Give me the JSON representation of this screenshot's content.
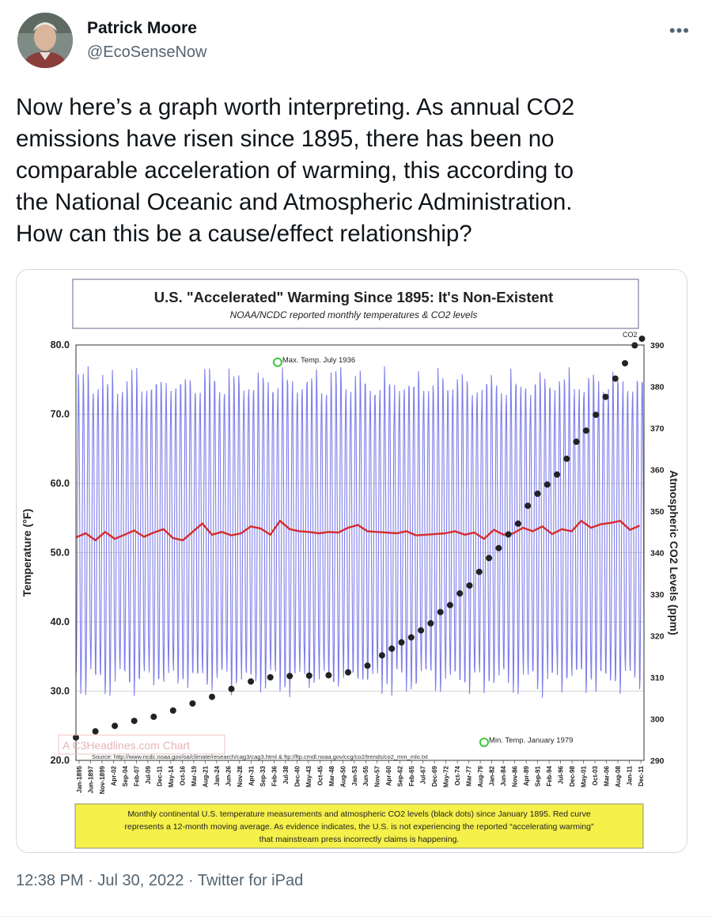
{
  "author": {
    "name": "Patrick Moore",
    "handle": "@EcoSenseNow"
  },
  "menu_icon": "more-horizontal-icon",
  "tweet": {
    "text": "Now here’s a graph worth interpreting. As annual CO2\nemissions have risen since 1895, there has been no\ncomparable acceleration of warming, this according to\nthe National Oceanic and Atmospheric Administration.\nHow can this be a cause/effect relationship?"
  },
  "meta": {
    "time": "12:38 PM",
    "separator": "·",
    "date": "Jul 30, 2022",
    "source": "Twitter for iPad"
  },
  "colors": {
    "monthly_bars": "#6f6fe8",
    "moving_average": "#d62c2c",
    "co2_dots": "#222222",
    "caption_bg": "#f5f04a"
  },
  "chart_data": {
    "type": "line",
    "title": "U.S. \"Accelerated\" Warming Since 1895: It's Non-Existent",
    "subtitle": "NOAA/NCDC reported monthly temperatures & CO2 levels",
    "ylabel": "Temperature (°F)",
    "y2label": "Atmospheric CO2 Levels (ppm)",
    "ylim": [
      20,
      80
    ],
    "y2lim": [
      290,
      390
    ],
    "yticks": [
      "80.0",
      "70.0",
      "60.0",
      "50.0",
      "40.0",
      "30.0",
      "20.0"
    ],
    "y2ticks": [
      "390",
      "380",
      "370",
      "360",
      "350",
      "340",
      "330",
      "320",
      "310",
      "300",
      "290"
    ],
    "x_range": [
      1895,
      2011.9
    ],
    "xtick_labels": [
      "Jan-1895",
      "Jun-1897",
      "Nov-1899",
      "Apr-02",
      "Sep-04",
      "Feb-07",
      "Jul-09",
      "Dec-11",
      "May-14",
      "Oct-16",
      "Mar-19",
      "Aug-21",
      "Jan-24",
      "Jun-26",
      "Nov-28",
      "Apr-31",
      "Sep-33",
      "Feb-36",
      "Jul-38",
      "Dec-40",
      "May-43",
      "Oct-45",
      "Mar-48",
      "Aug-50",
      "Jan-53",
      "Jun-55",
      "Nov-57",
      "Apr-60",
      "Sep-62",
      "Feb-65",
      "Jul-67",
      "Dec-69",
      "May-72",
      "Oct-74",
      "Mar-77",
      "Aug-79",
      "Jan-82",
      "Jun-84",
      "Nov-86",
      "Apr-89",
      "Sep-91",
      "Feb-94",
      "Jul-96",
      "Dec-98",
      "May-01",
      "Oct-03",
      "Mar-06",
      "Aug-08",
      "Jan-11",
      "Dec-11"
    ],
    "series": [
      {
        "name": "Monthly continental U.S. temperature",
        "style": "monthly oscillation",
        "summer_peak_approx": 74.5,
        "winter_trough_approx": 31.5
      },
      {
        "name": "12-month moving average",
        "x": [
          1895,
          1897,
          1899,
          1901,
          1903,
          1905,
          1907,
          1909,
          1911,
          1913,
          1915,
          1917,
          1919,
          1921,
          1923,
          1925,
          1927,
          1929,
          1931,
          1933,
          1935,
          1937,
          1939,
          1941,
          1943,
          1945,
          1947,
          1949,
          1951,
          1953,
          1955,
          1957,
          1959,
          1961,
          1963,
          1965,
          1967,
          1969,
          1971,
          1973,
          1975,
          1977,
          1979,
          1981,
          1983,
          1985,
          1987,
          1989,
          1991,
          1993,
          1995,
          1997,
          1999,
          2001,
          2003,
          2005,
          2007,
          2009,
          2011
        ],
        "values": [
          52.2,
          52.8,
          51.8,
          53.0,
          52.0,
          52.6,
          53.2,
          52.3,
          52.9,
          53.4,
          52.1,
          51.8,
          53.0,
          54.2,
          52.6,
          53.0,
          52.5,
          52.8,
          53.8,
          53.5,
          52.6,
          54.6,
          53.4,
          53.1,
          53.0,
          52.8,
          53.0,
          52.9,
          53.6,
          54.0,
          53.1,
          53.0,
          52.9,
          52.8,
          53.1,
          52.5,
          52.6,
          52.7,
          52.8,
          53.1,
          52.6,
          52.9,
          52.0,
          53.3,
          52.6,
          52.8,
          53.6,
          53.1,
          53.8,
          52.7,
          53.4,
          53.1,
          54.6,
          53.6,
          54.1,
          54.3,
          54.6,
          53.3,
          53.9
        ]
      },
      {
        "name": "Atmospheric CO2 (ppm)",
        "axis": "right",
        "x": [
          1895,
          1899,
          1903,
          1907,
          1911,
          1915,
          1919,
          1923,
          1927,
          1931,
          1935,
          1939,
          1943,
          1947,
          1951,
          1955,
          1958,
          1960,
          1962,
          1964,
          1966,
          1968,
          1970,
          1972,
          1974,
          1976,
          1978,
          1980,
          1982,
          1984,
          1986,
          1988,
          1990,
          1992,
          1994,
          1996,
          1998,
          2000,
          2002,
          2004,
          2006,
          2008,
          2010,
          2011.5
        ],
        "values": [
          295.5,
          297.0,
          298.3,
          299.5,
          300.5,
          302.0,
          303.7,
          305.3,
          307.2,
          309.0,
          310.0,
          310.3,
          310.4,
          310.5,
          311.2,
          312.8,
          315.3,
          316.9,
          318.4,
          319.6,
          321.3,
          323.0,
          325.7,
          327.4,
          330.2,
          332.1,
          335.4,
          338.7,
          341.1,
          344.4,
          347.0,
          351.3,
          354.2,
          356.4,
          358.8,
          362.6,
          366.7,
          369.4,
          373.2,
          377.5,
          381.9,
          385.6,
          389.9,
          391.5
        ]
      }
    ],
    "annotations": [
      {
        "text": "Max. Temp. July 1936",
        "x": 1936.5,
        "y": 77.5
      },
      {
        "text": "Min. Temp. January 1979",
        "x": 1979.0,
        "y": 22.6
      },
      {
        "text": "CO2",
        "x": 2011.5,
        "y2": 391.5
      }
    ],
    "source_note": "Source: http://www.ncdc.noaa.gov/oa/climate/research/cag3/cag3.html  &  ftp://ftp.cmdl.noaa.gov/ccg/co2/trends/co2_mm_mlo.txt",
    "watermark": "A C3Headlines.com Chart",
    "caption": [
      "Monthly continental U.S. temperature measurements and atmospheric CO2 levels (black dots) since January 1895. Red curve",
      "represents a 12-month moving average. As evidence indicates, the U.S. is not experiencing the reported “accelerating warming”",
      "that mainstream press incorrectly claims is happening."
    ]
  }
}
